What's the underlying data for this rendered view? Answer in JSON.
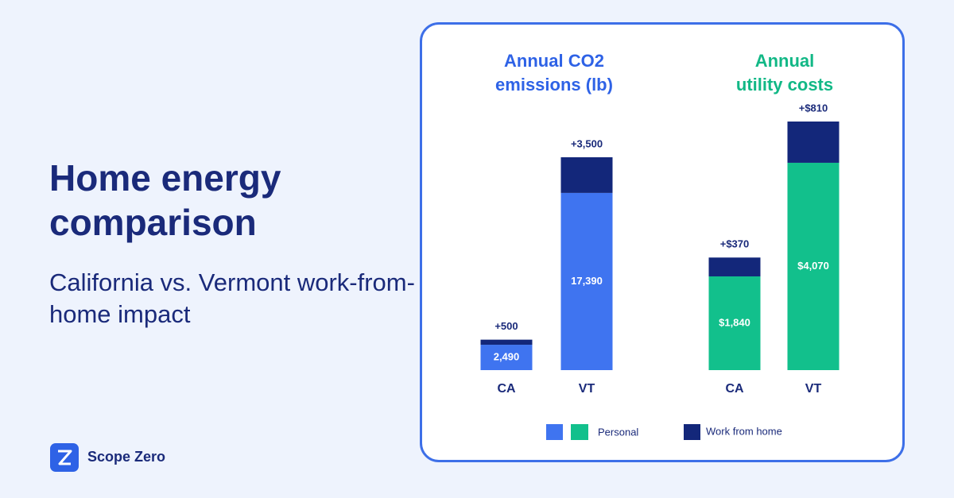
{
  "heading": "Home energy comparison",
  "subheading": "California vs. Vermont work-from-home impact",
  "brand": "Scope Zero",
  "chart_data": [
    {
      "type": "bar",
      "stacked": true,
      "title": "Annual CO2 emissions (lb)",
      "title_color": "#2e62e6",
      "categories": [
        "CA",
        "VT"
      ],
      "series": [
        {
          "name": "Personal",
          "color": "#3f74f0",
          "values": [
            2490,
            17390
          ],
          "value_labels": [
            "2,490",
            "17,390"
          ]
        },
        {
          "name": "Work from home",
          "color": "#13277a",
          "values": [
            500,
            3500
          ],
          "value_labels": [
            "+500",
            "+3,500"
          ]
        }
      ]
    },
    {
      "type": "bar",
      "stacked": true,
      "title": "Annual utility costs",
      "title_color": "#12b886",
      "categories": [
        "CA",
        "VT"
      ],
      "series": [
        {
          "name": "Personal",
          "color": "#12c08c",
          "values": [
            1840,
            4070
          ],
          "value_labels": [
            "$1,840",
            "$4,070"
          ]
        },
        {
          "name": "Work from home",
          "color": "#13277a",
          "values": [
            370,
            810
          ],
          "value_labels": [
            "+$370",
            "+$810"
          ]
        }
      ]
    }
  ]
}
